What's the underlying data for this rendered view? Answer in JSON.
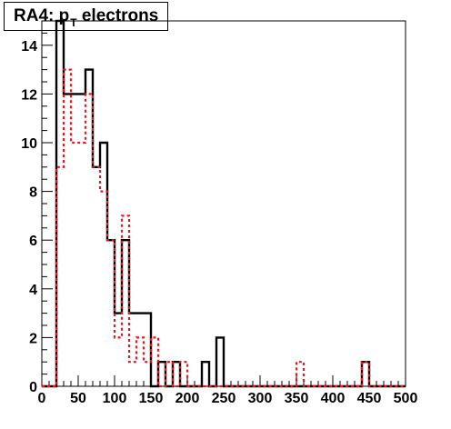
{
  "chart_data": {
    "type": "histogram",
    "title": {
      "prefix": "RA4: p",
      "subscript": "T",
      "suffix": " electrons"
    },
    "xlabel": "",
    "ylabel": "",
    "xlim": [
      0,
      500
    ],
    "ylim": [
      0,
      15
    ],
    "bin_width": 10,
    "x_ticks": [
      "0",
      "50",
      "100",
      "150",
      "200",
      "250",
      "300",
      "350",
      "400",
      "450",
      "500"
    ],
    "y_ticks": [
      "0",
      "2",
      "4",
      "6",
      "8",
      "10",
      "12",
      "14"
    ],
    "grid": false,
    "legend": "none",
    "series": [
      {
        "style": "solid",
        "color": "#000000",
        "bins_low_edge": [
          0,
          10,
          20,
          30,
          40,
          50,
          60,
          70,
          80,
          90,
          100,
          110,
          120,
          130,
          140,
          150,
          160,
          170,
          180,
          190,
          200,
          210,
          220,
          230,
          240,
          250,
          260,
          270,
          280,
          290,
          300,
          310,
          320,
          330,
          340,
          350,
          360,
          370,
          380,
          390,
          400,
          410,
          420,
          430,
          440,
          450,
          460,
          470,
          480,
          490
        ],
        "counts": [
          0,
          0,
          15,
          12,
          12,
          12,
          13,
          9,
          10,
          6,
          3,
          6,
          3,
          3,
          3,
          0,
          1,
          0,
          1,
          0,
          0,
          0,
          1,
          0,
          2,
          0,
          0,
          0,
          0,
          0,
          0,
          0,
          0,
          0,
          0,
          0,
          0,
          0,
          0,
          0,
          0,
          0,
          0,
          0,
          1,
          0,
          0,
          0,
          0,
          0
        ]
      },
      {
        "style": "dashed",
        "color": "#e8141e",
        "bins_low_edge": [
          0,
          10,
          20,
          30,
          40,
          50,
          60,
          70,
          80,
          90,
          100,
          110,
          120,
          130,
          140,
          150,
          160,
          170,
          180,
          190,
          200,
          210,
          220,
          230,
          240,
          250,
          260,
          270,
          280,
          290,
          300,
          310,
          320,
          330,
          340,
          350,
          360,
          370,
          380,
          390,
          400,
          410,
          420,
          430,
          440,
          450,
          460,
          470,
          480,
          490
        ],
        "counts": [
          0,
          0,
          9,
          13,
          10,
          10,
          12,
          9,
          8,
          6,
          2,
          7,
          1,
          2,
          1,
          2,
          0,
          1,
          0,
          1,
          0,
          0,
          0,
          0,
          0,
          0,
          0,
          0,
          0,
          0,
          0,
          0,
          0,
          0,
          0,
          1,
          0,
          0,
          0,
          0,
          0,
          0,
          0,
          0,
          1,
          0,
          0,
          0,
          0,
          0
        ]
      }
    ]
  }
}
